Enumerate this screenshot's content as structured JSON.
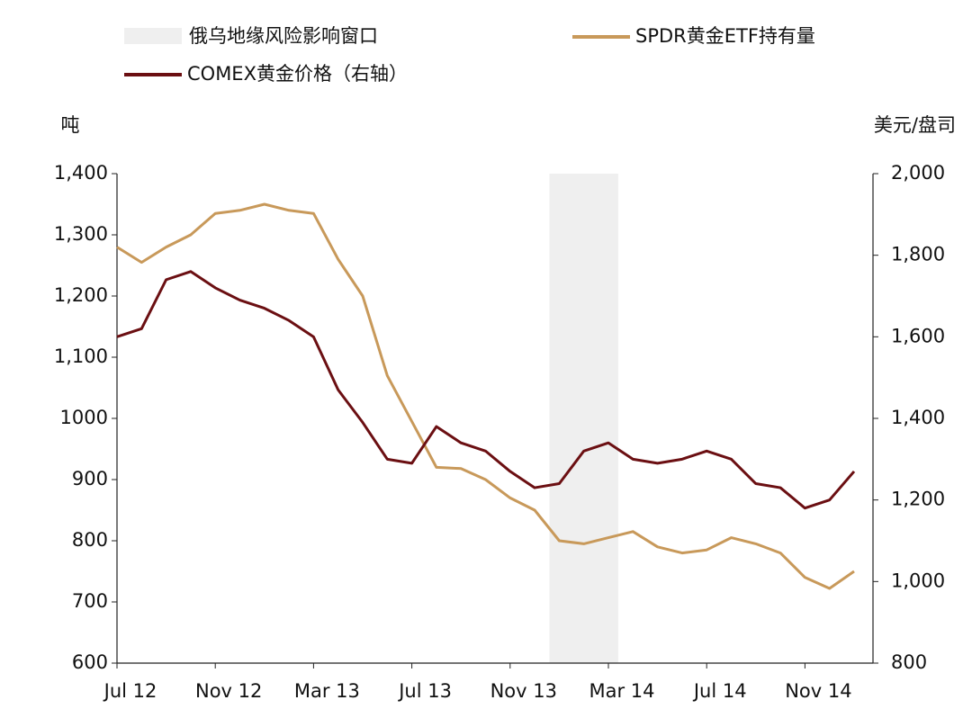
{
  "chart_data": {
    "type": "line",
    "y_label": "吨",
    "y2_label": "美元/盘司",
    "categories": [
      "Jul 12",
      null,
      null,
      null,
      "Nov 12",
      null,
      null,
      null,
      "Mar 13",
      null,
      null,
      null,
      "Jul 13",
      null,
      null,
      null,
      "Nov 13",
      null,
      null,
      null,
      "Mar 14",
      null,
      null,
      null,
      "Jul 14",
      null,
      null,
      null,
      "Nov 14",
      null,
      null
    ],
    "shade": {
      "name": "俄乌地缘风险影响窗口",
      "color": "#efefef",
      "x": [
        17.6,
        20.4
      ]
    },
    "series": [
      {
        "name": "SPDR黄金ETF持有量",
        "color": "#c8995a",
        "values": [
          1280,
          1255,
          1280,
          1300,
          1335,
          1340,
          1350,
          1340,
          1335,
          1260,
          1200,
          1070,
          995,
          920,
          918,
          900,
          870,
          850,
          800,
          795,
          805,
          815,
          790,
          780,
          785,
          805,
          795,
          780,
          740,
          722,
          750
        ]
      },
      {
        "name": "COMEX黄金价格（右轴）",
        "color": "#6b0f12",
        "axis": "y2",
        "values": [
          1600,
          1620,
          1740,
          1760,
          1720,
          1690,
          1670,
          1640,
          1600,
          1470,
          1390,
          1300,
          1290,
          1380,
          1340,
          1320,
          1270,
          1230,
          1240,
          1320,
          1340,
          1300,
          1290,
          1300,
          1320,
          1300,
          1240,
          1230,
          1180,
          1200,
          1270
        ]
      }
    ],
    "ylim": [
      600,
      1400
    ],
    "yticks": [
      600,
      700,
      800,
      900,
      1000,
      {
        "value": 1100,
        "label": "1,100"
      },
      {
        "value": 1200,
        "label": "1,200"
      },
      {
        "value": 1300,
        "label": "1,300"
      },
      {
        "value": 1400,
        "label": "1,400"
      }
    ],
    "y2lim": [
      800,
      2000
    ],
    "y2ticks": [
      800,
      {
        "value": 1000,
        "label": "1,000"
      },
      {
        "value": 1200,
        "label": "1,200"
      },
      {
        "value": 1400,
        "label": "1,400"
      },
      {
        "value": 1600,
        "label": "1,600"
      },
      {
        "value": 1800,
        "label": "1,800"
      },
      {
        "value": 2000,
        "label": "2,000"
      }
    ]
  }
}
